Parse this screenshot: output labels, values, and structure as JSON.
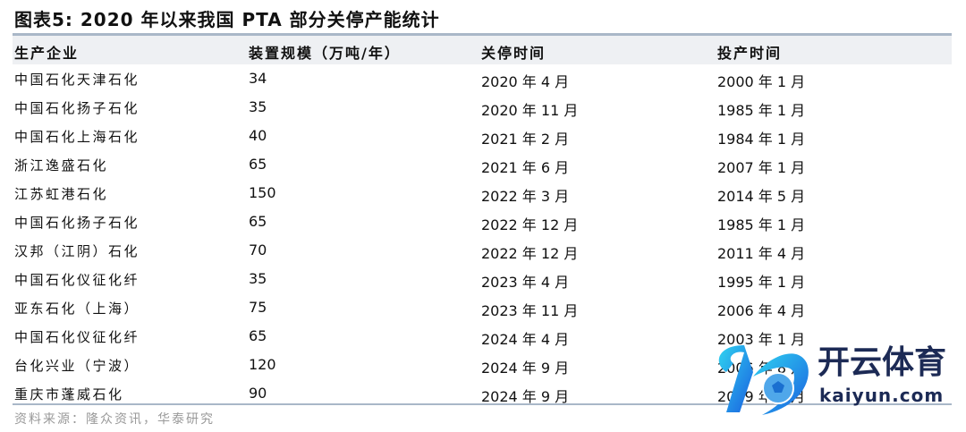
{
  "title": "图表5:   2020 年以来我国 PTA 部分关停产能统计",
  "columns": [
    "生产企业",
    "装置规模（万吨/年）",
    "关停时间",
    "投产时间"
  ],
  "rows": [
    [
      "中国石化天津石化",
      "34",
      "2020 年 4 月",
      "2000 年 1 月"
    ],
    [
      "中国石化扬子石化",
      "35",
      "2020 年 11 月",
      "1985 年 1 月"
    ],
    [
      "中国石化上海石化",
      "40",
      "2021 年 2 月",
      "1984 年 1 月"
    ],
    [
      "浙江逸盛石化",
      "65",
      "2021 年 6 月",
      "2007 年 1 月"
    ],
    [
      "江苏虹港石化",
      "150",
      "2022 年 3 月",
      "2014 年 5 月"
    ],
    [
      "中国石化扬子石化",
      "65",
      "2022 年 12 月",
      "1985 年 1 月"
    ],
    [
      "汉邦（江阴）石化",
      "70",
      "2022 年 12 月",
      "2011 年 4 月"
    ],
    [
      "中国石化仪征化纤",
      "35",
      "2023 年 4 月",
      "1995 年 1 月"
    ],
    [
      "亚东石化（上海）",
      "75",
      "2023 年 11 月",
      "2006 年 4 月"
    ],
    [
      "中国石化仪征化纤",
      "65",
      "2024 年 4 月",
      "2003 年 1 月"
    ],
    [
      "台化兴业（宁波）",
      "120",
      "2024 年 9 月",
      "2006 年 8 月"
    ],
    [
      "重庆市蓬威石化",
      "90",
      "2024 年 9 月",
      "2009 年 1 月"
    ]
  ],
  "source": "资料来源：隆众资讯，华泰研究",
  "watermark": {
    "cn": "开云体育",
    "en": "kaiyun.com"
  },
  "colors": {
    "rule": "#a9b7c8",
    "header_bg": "#eef0f3"
  }
}
